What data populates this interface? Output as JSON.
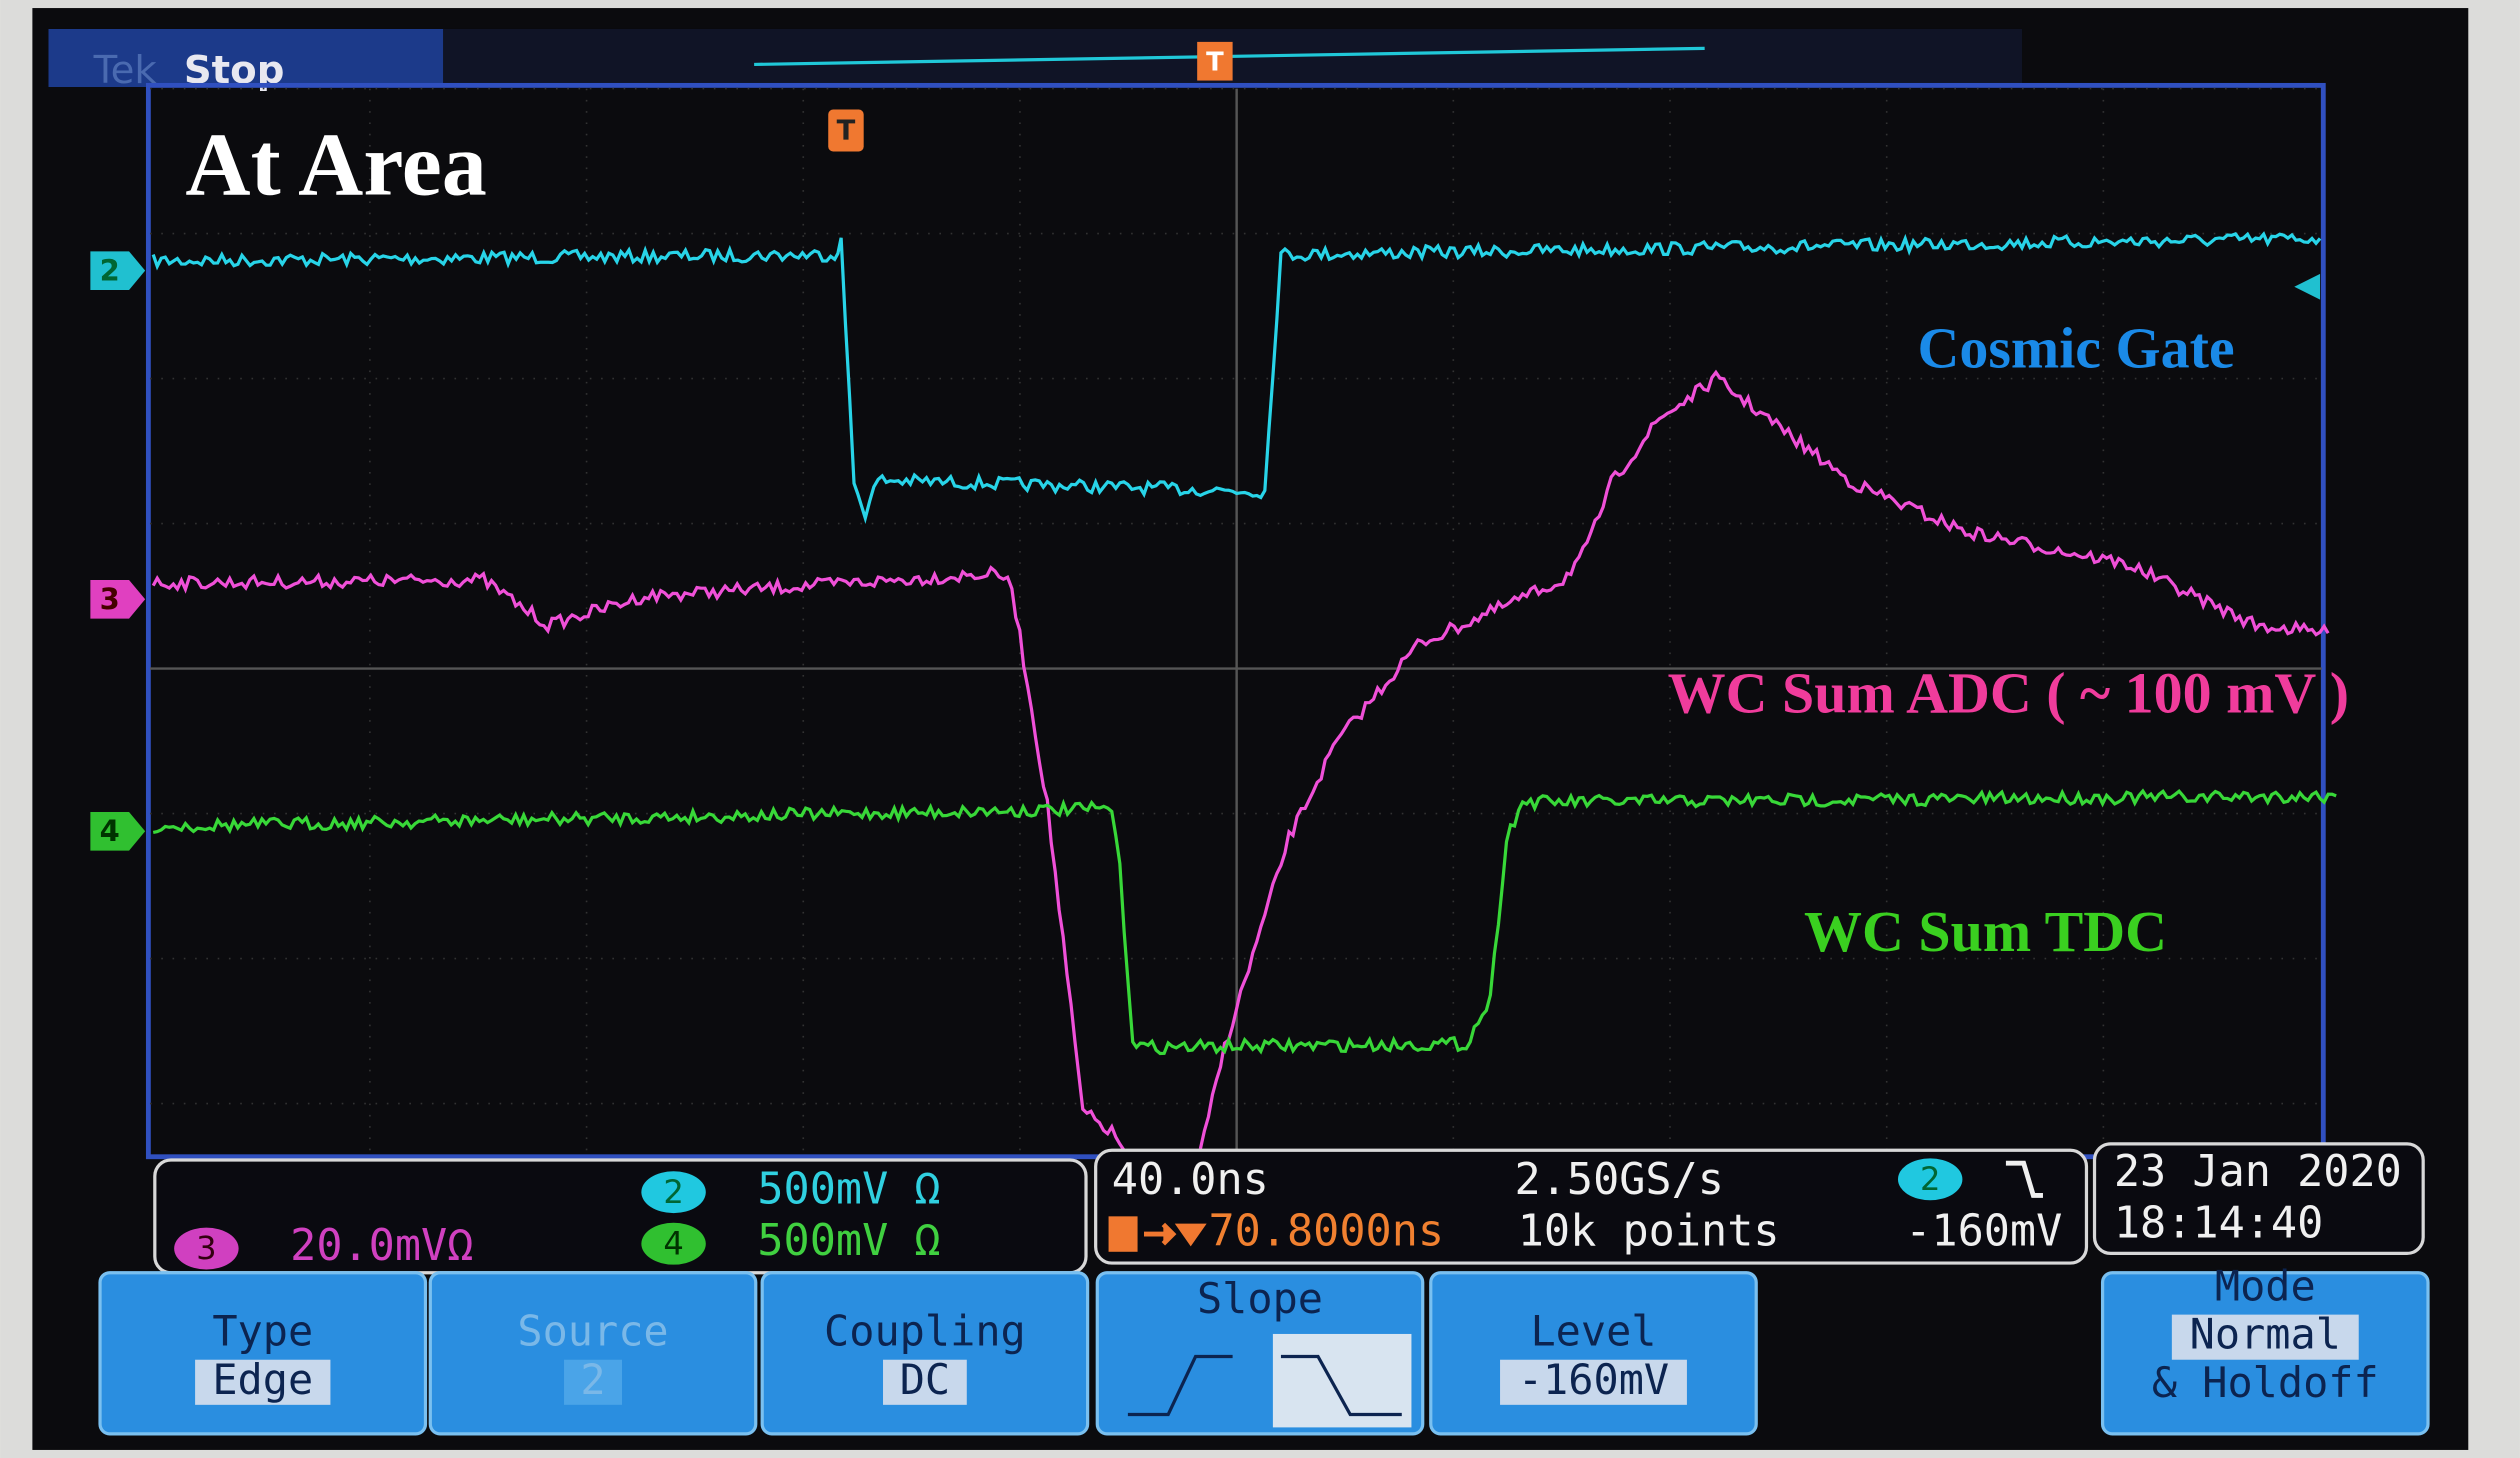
{
  "status": {
    "logo": "Tek",
    "state": "Stop"
  },
  "annotation": "At Area",
  "markers": {
    "trigger": "T",
    "channels": [
      "2",
      "3",
      "4"
    ]
  },
  "trace_labels": [
    "Cosmic Gate",
    "WC Sum ADC ( ~ 100 mV )",
    "WC Sum TDC"
  ],
  "readouts": {
    "channels": [
      {
        "channel": "2",
        "scale": "500mV Ω"
      },
      {
        "channel": "3",
        "scale": "20.0mVΩ"
      },
      {
        "channel": "4",
        "scale": "500mV Ω"
      }
    ],
    "timebase": "40.0ns",
    "trigger_position": "70.8000ns",
    "sample_rate": "2.50GS/s",
    "record_length": "10k points",
    "trigger_source": "2",
    "trigger_level": "-160mV",
    "date": "23 Jan 2020",
    "time": "18:14:40"
  },
  "menu": [
    {
      "label": "Type",
      "value": "Edge"
    },
    {
      "label": "Source",
      "value": "2"
    },
    {
      "label": "Coupling",
      "value": "DC"
    },
    {
      "label": "Slope"
    },
    {
      "label": "Level",
      "value": "-160mV"
    },
    {
      "label": "Mode",
      "value": "Normal",
      "extra": "& Holdoff"
    }
  ]
}
